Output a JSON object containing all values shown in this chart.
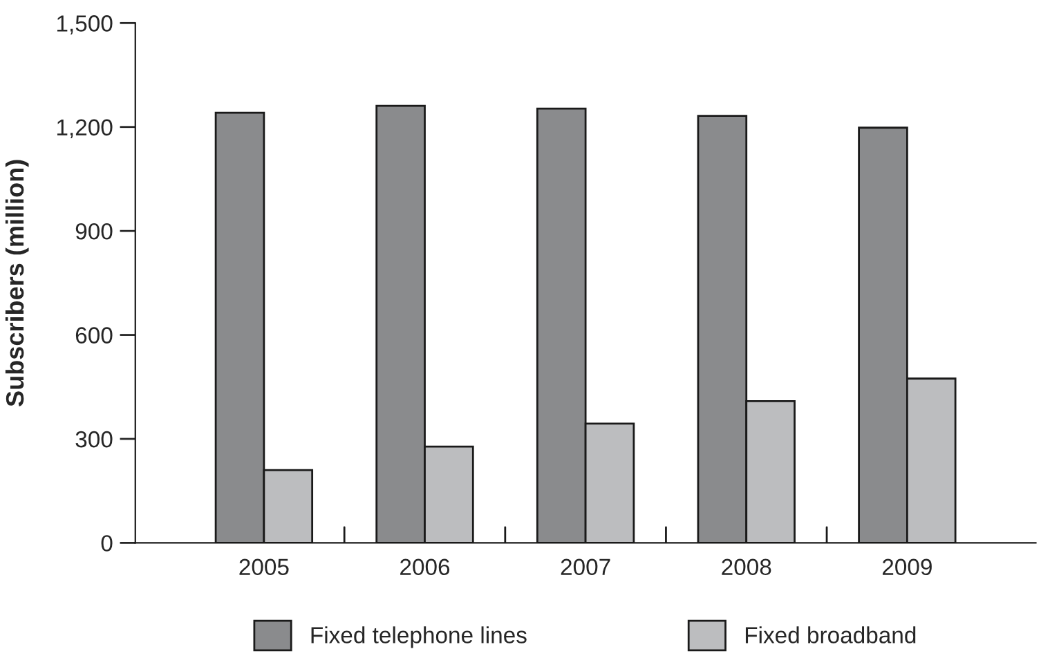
{
  "chart_data": {
    "type": "bar",
    "ylabel": "Subscribers (million)",
    "categories": [
      "2005",
      "2006",
      "2007",
      "2008",
      "2009"
    ],
    "series": [
      {
        "name": "Fixed telephone lines",
        "color": "#8a8b8d",
        "values": [
          1241,
          1261,
          1253,
          1232,
          1198
        ]
      },
      {
        "name": "Fixed broadband",
        "color": "#bcbdbf",
        "values": [
          210,
          278,
          344,
          409,
          474
        ]
      }
    ],
    "ylim": [
      0,
      1500
    ],
    "yticks": [
      0,
      {
        "value": 300,
        "label": "300"
      },
      {
        "value": 600,
        "label": "600"
      },
      {
        "value": 900,
        "label": "900"
      },
      {
        "value": 1200,
        "label": "1,200"
      },
      {
        "value": 1500,
        "label": "1,500"
      }
    ],
    "grid": false,
    "legend": "bottom"
  }
}
